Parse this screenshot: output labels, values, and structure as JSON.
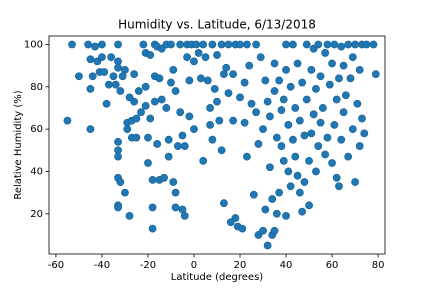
{
  "chart_data": {
    "type": "scatter",
    "title": "Humidity vs. Latitude, 6/13/2018",
    "x_label": "Latitude (degrees)",
    "y_label": "Relative Humidity (%)",
    "xlim": [
      -63,
      83
    ],
    "ylim": [
      1,
      104
    ],
    "xticks": [
      -60,
      -40,
      -20,
      0,
      20,
      40,
      60,
      80
    ],
    "yticks": [
      20,
      40,
      60,
      80,
      100
    ],
    "series": [
      {
        "color": "#1f77b4",
        "x": [
          -55,
          -53,
          -50,
          -46,
          -45,
          -45,
          -45,
          -44,
          -43,
          -42,
          -41,
          -40,
          -40,
          -39,
          -38,
          -37,
          -36,
          -35,
          -34,
          -33,
          -33,
          -33,
          -33,
          -33,
          -33,
          -33,
          -33,
          -33,
          -32,
          -32,
          -31,
          -30,
          -30,
          -29,
          -29,
          -28,
          -28,
          -27,
          -27,
          -26,
          -26,
          -25,
          -25,
          -24,
          -23,
          -22,
          -21,
          -21,
          -21,
          -20,
          -20,
          -19,
          -19,
          -18,
          -18,
          -18,
          -17,
          -17,
          -17,
          -16,
          -16,
          -15,
          -15,
          -14,
          -14,
          -13,
          -12,
          -12,
          -11,
          -11,
          -10,
          -10,
          -9,
          -9,
          -8,
          -8,
          -8,
          -7,
          -6,
          -6,
          -5,
          -5,
          -4,
          -4,
          -3,
          -3,
          -2,
          -2,
          -1,
          0,
          0,
          1,
          2,
          3,
          4,
          4,
          5,
          6,
          7,
          7,
          8,
          8,
          9,
          10,
          10,
          11,
          12,
          12,
          13,
          13,
          14,
          15,
          15,
          16,
          17,
          17,
          18,
          18,
          19,
          20,
          20,
          21,
          22,
          22,
          23,
          23,
          24,
          25,
          26,
          27,
          27,
          28,
          28,
          29,
          30,
          30,
          31,
          31,
          32,
          32,
          33,
          33,
          34,
          34,
          35,
          35,
          35,
          36,
          36,
          37,
          37,
          38,
          38,
          39,
          39,
          40,
          40,
          40,
          41,
          41,
          42,
          42,
          43,
          43,
          44,
          44,
          45,
          45,
          46,
          46,
          47,
          47,
          48,
          48,
          49,
          49,
          50,
          50,
          51,
          51,
          52,
          52,
          53,
          53,
          54,
          54,
          55,
          55,
          56,
          57,
          57,
          58,
          58,
          59,
          60,
          60,
          61,
          61,
          62,
          62,
          63,
          63,
          64,
          64,
          65,
          65,
          66,
          67,
          67,
          68,
          69,
          69,
          70,
          70,
          71,
          72,
          72,
          73,
          73,
          74,
          75,
          78,
          79
        ],
        "values": [
          64,
          100,
          85,
          100,
          93,
          79,
          60,
          85,
          99,
          92,
          87,
          100,
          94,
          87,
          72,
          81,
          94,
          85,
          81,
          89,
          92,
          100,
          54,
          50,
          47,
          37,
          24,
          23,
          78,
          35,
          85,
          88,
          30,
          63,
          60,
          75,
          19,
          64,
          56,
          86,
          73,
          65,
          56,
          78,
          68,
          100,
          96,
          80,
          71,
          56,
          44,
          65,
          95,
          36,
          23,
          13,
          100,
          85,
          73,
          99,
          53,
          84,
          36,
          98,
          74,
          37,
          100,
          70,
          55,
          47,
          82,
          100,
          35,
          88,
          78,
          23,
          30,
          52,
          100,
          68,
          57,
          22,
          19,
          52,
          94,
          100,
          83,
          66,
          100,
          92,
          60,
          100,
          96,
          84,
          45,
          100,
          94,
          83,
          70,
          62,
          100,
          55,
          79,
          95,
          73,
          64,
          100,
          50,
          86,
          25,
          89,
          100,
          77,
          16,
          86,
          64,
          100,
          18,
          14,
          75,
          100,
          13,
          82,
          63,
          47,
          100,
          90,
          72,
          29,
          68,
          100,
          53,
          10,
          94,
          60,
          12,
          83,
          22,
          73,
          5,
          42,
          66,
          10,
          27,
          91,
          78,
          12,
          56,
          20,
          30,
          83,
          69,
          52,
          45,
          74,
          100,
          88,
          19,
          62,
          40,
          33,
          80,
          100,
          55,
          70,
          47,
          91,
          38,
          64,
          30,
          82,
          21,
          57,
          35,
          100,
          74,
          45,
          24,
          88,
          58,
          98,
          67,
          40,
          79,
          100,
          52,
          85,
          63,
          70,
          96,
          48,
          100,
          56,
          81,
          44,
          91,
          100,
          62,
          37,
          74,
          84,
          33,
          99,
          55,
          68,
          90,
          76,
          100,
          47,
          84,
          60,
          94,
          35,
          100,
          72,
          88,
          52,
          100,
          65,
          58,
          100,
          100,
          86
        ]
      }
    ]
  }
}
